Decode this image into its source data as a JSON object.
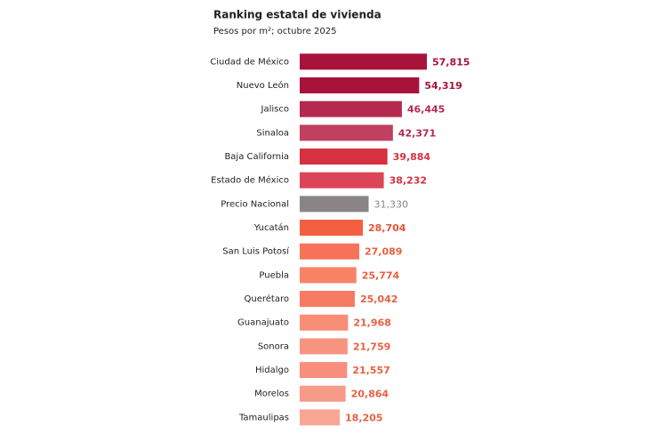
{
  "chart_data": {
    "type": "bar",
    "orientation": "horizontal",
    "title": "Ranking estatal de vivienda",
    "subtitle": "Pesos por m²; octubre 2025",
    "categories": [
      "Ciudad de México",
      "Nuevo León",
      "Jalisco",
      "Sinaloa",
      "Baja California",
      "Estado de México",
      "Precio Nacional",
      "Yucatán",
      "San Luis Potosí",
      "Puebla",
      "Querétaro",
      "Guanajuato",
      "Sonora",
      "Hidalgo",
      "Morelos",
      "Tamaulipas"
    ],
    "values": [
      57815,
      54319,
      46445,
      42371,
      39884,
      38232,
      31330,
      28704,
      27089,
      25774,
      25042,
      21968,
      21759,
      21557,
      20864,
      18205
    ],
    "value_labels": [
      "57,815",
      "54,319",
      "46,445",
      "42,371",
      "39,884",
      "38,232",
      "31,330",
      "28,704",
      "27,089",
      "25,774",
      "25,042",
      "21,968",
      "21,759",
      "21,557",
      "20,864",
      "18,205"
    ],
    "colors": [
      "#a8133c",
      "#a8133c",
      "#b5294f",
      "#c0405f",
      "#d7303f",
      "#dc4557",
      "#8a8486",
      "#f4603f",
      "#f7735a",
      "#f88468",
      "#f77a62",
      "#f88e78",
      "#f79480",
      "#f78f7c",
      "#f79a88",
      "#f8a596"
    ],
    "label_colors": [
      "#a8133c",
      "#a8133c",
      "#b5294f",
      "#b5294f",
      "#d7303f",
      "#d7303f",
      "#8a8486",
      "#e8533a",
      "#e8603f",
      "#e8603f",
      "#e8603f",
      "#e8603f",
      "#e8603f",
      "#e8603f",
      "#e8603f",
      "#e8603f"
    ],
    "xlim": [
      0,
      57815
    ]
  }
}
